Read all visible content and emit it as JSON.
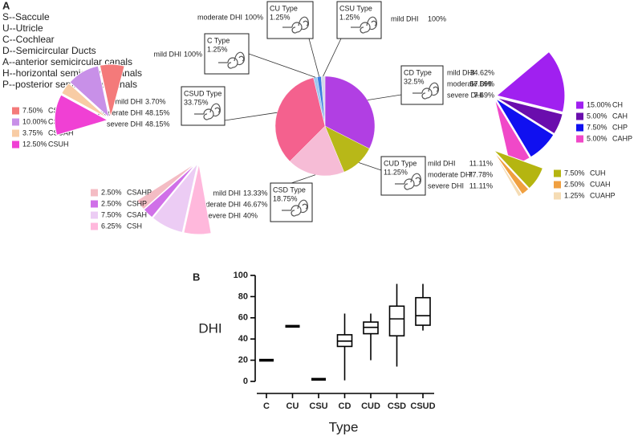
{
  "chart_data": [
    {
      "type": "pie",
      "panel": "A",
      "abbreviations": [
        "S--Saccule",
        "U--Utricle",
        "C--Cochlear",
        "D--Semicircular Ducts",
        "A--anterior semicircular canals",
        "H--horizontal semicircular canals",
        "P--posterior semicircular canals"
      ],
      "types": [
        {
          "name": "CD Type",
          "value": 32.5,
          "value_label": "32.5%",
          "color": "#b13fe3",
          "dhi": {
            "names": [
              "mild DHI",
              "moderate DHI",
              "severe DHI"
            ],
            "percents": [
              "34.62%",
              "57.69%",
              "7.69%"
            ]
          },
          "subtypes": {
            "names": [
              "CH",
              "CAH",
              "CHP",
              "CAHP"
            ],
            "values": [
              15,
              5,
              7.5,
              5
            ],
            "value_labels": [
              "15.00%",
              "5.00%",
              "7.50%",
              "5.00%"
            ],
            "colors": [
              "#a020f0",
              "#6a0dad",
              "#1010f0",
              "#f048c8"
            ]
          }
        },
        {
          "name": "CUD Type",
          "value": 11.25,
          "value_label": "11.25%",
          "color": "#b8b818",
          "dhi": {
            "names": [
              "mild DHI",
              "moderate DHI",
              "severe DHI"
            ],
            "percents": [
              "11.11%",
              "77.78%",
              "11.11%"
            ]
          },
          "subtypes": {
            "names": [
              "CUH",
              "CUAH",
              "CUAHP"
            ],
            "values": [
              7.5,
              2.5,
              1.25
            ],
            "value_labels": [
              "7.50%",
              "2.50%",
              "1.25%"
            ],
            "colors": [
              "#b5b510",
              "#f0a040",
              "#f5dcb4"
            ]
          }
        },
        {
          "name": "CSD Type",
          "value": 18.75,
          "value_label": "18.75%",
          "color": "#f6bcd6",
          "dhi": {
            "names": [
              "mild DHI",
              "moderate DHI",
              "severe DHI"
            ],
            "percents": [
              "13.33%",
              "46.67%",
              "40%"
            ]
          },
          "subtypes": {
            "names": [
              "CSAHP",
              "CSHP",
              "CSAH",
              "CSH"
            ],
            "values": [
              2.5,
              2.5,
              7.5,
              6.25
            ],
            "value_labels": [
              "2.50%",
              "2.50%",
              "7.50%",
              "6.25%"
            ],
            "colors": [
              "#f4bcc4",
              "#d070e8",
              "#ecccf4",
              "#ffb8dc"
            ]
          }
        },
        {
          "name": "CSUD Type",
          "value": 33.75,
          "value_label": "33.75%",
          "color": "#f4618e",
          "dhi": {
            "names": [
              "mild DHI",
              "moderate DHI",
              "severe DHI"
            ],
            "percents": [
              "3.70%",
              "48.15%",
              "48.15%"
            ]
          },
          "subtypes": {
            "names": [
              "CSUAHP",
              "CSUHP",
              "CSUAH",
              "CSUH"
            ],
            "values": [
              7.5,
              10,
              3.75,
              12.5
            ],
            "value_labels": [
              "7.50%",
              "10.00%",
              "3.75%",
              "12.50%"
            ],
            "colors": [
              "#f47a7a",
              "#c890e8",
              "#f8cca4",
              "#f040d4"
            ]
          }
        },
        {
          "name": "C Type",
          "value": 1.25,
          "value_label": "1.25%",
          "color": "#9ec8f0",
          "dhi": {
            "names": [
              "mild DHI"
            ],
            "percents": [
              "100%"
            ]
          }
        },
        {
          "name": "CU Type",
          "value": 1.25,
          "value_label": "1.25%",
          "color": "#3c7de0",
          "dhi": {
            "names": [
              "moderate DHI"
            ],
            "percents": [
              "100%"
            ]
          }
        },
        {
          "name": "CSU Type",
          "value": 1.25,
          "value_label": "1.25%",
          "color": "#d4dae8",
          "dhi": {
            "names": [
              "mild DHI"
            ],
            "percents": [
              "100%"
            ]
          }
        }
      ]
    },
    {
      "type": "box",
      "panel": "B",
      "ylabel": "DHI",
      "xlabel": "Type",
      "categories": [
        "C",
        "CU",
        "CSU",
        "CD",
        "CUD",
        "CSD",
        "CSUD"
      ],
      "min": [
        20,
        52,
        2,
        1,
        20,
        14,
        48
      ],
      "q1": [
        20,
        52,
        2,
        33,
        45,
        43,
        53
      ],
      "median": [
        20,
        52,
        2,
        38,
        51,
        59,
        62
      ],
      "q3": [
        20,
        52,
        2,
        44,
        56,
        71,
        79
      ],
      "max": [
        20,
        52,
        2,
        64,
        64,
        92,
        92
      ],
      "ylim": [
        0,
        100
      ],
      "yticks": [
        0,
        20,
        40,
        60,
        80,
        100
      ]
    }
  ]
}
